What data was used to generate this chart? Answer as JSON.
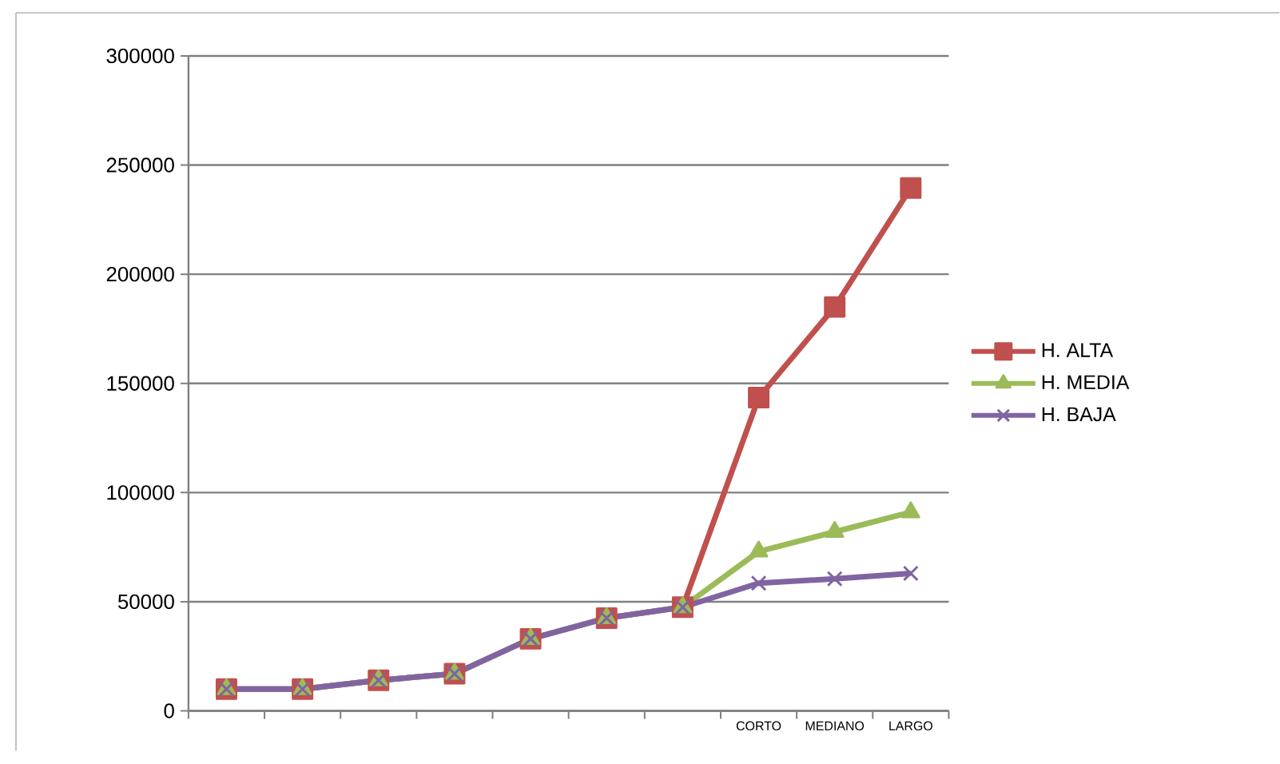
{
  "chart_data": {
    "type": "line",
    "categories": [
      null,
      null,
      null,
      null,
      null,
      null,
      null,
      "CORTO",
      "MEDIANO",
      "LARGO"
    ],
    "series": [
      {
        "name": "H. ALTA",
        "color": "#c0504d",
        "marker": "square",
        "values": [
          10000,
          10000,
          14000,
          17000,
          33000,
          42500,
          47500,
          143500,
          185000,
          239500
        ]
      },
      {
        "name": "H. MEDIA",
        "color": "#9bbb59",
        "marker": "triangle",
        "values": [
          10000,
          10000,
          14000,
          17000,
          33000,
          42500,
          47500,
          73000,
          82000,
          91000
        ]
      },
      {
        "name": "H. BAJA",
        "color": "#8064a2",
        "marker": "cross",
        "values": [
          10000,
          10000,
          14000,
          17000,
          33000,
          42500,
          47500,
          58500,
          60500,
          63000
        ]
      }
    ],
    "ylim": [
      0,
      300000
    ],
    "yticks": [
      0,
      50000,
      100000,
      150000,
      200000,
      250000,
      300000
    ],
    "grid": "y",
    "legend": "right",
    "line_style": "solid"
  }
}
